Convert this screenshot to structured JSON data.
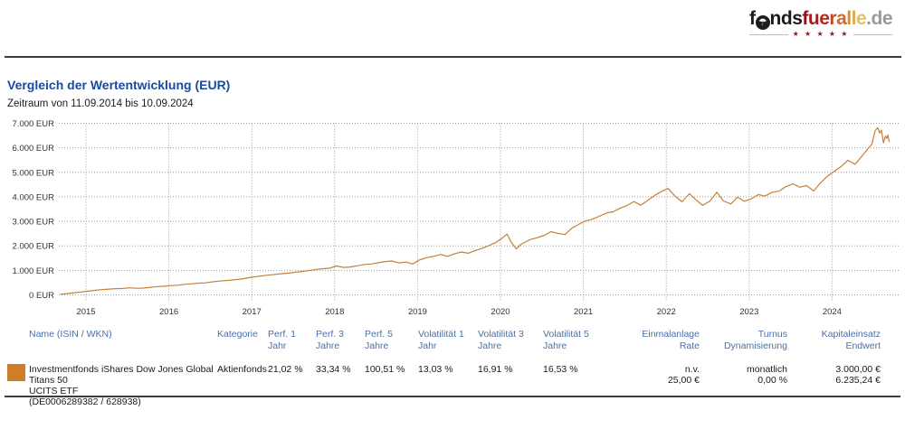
{
  "logo": {
    "f": "f",
    "o_glyph": "☂",
    "nds": "nds",
    "brand_letters": [
      {
        "ch": "f",
        "color": "#8e1216"
      },
      {
        "ch": "u",
        "color": "#a81a1c"
      },
      {
        "ch": "e",
        "color": "#bd2420"
      },
      {
        "ch": "r",
        "color": "#c94724"
      },
      {
        "ch": "a",
        "color": "#d06a28"
      },
      {
        "ch": "l",
        "color": "#d78d33"
      },
      {
        "ch": "l",
        "color": "#ddab4a"
      },
      {
        "ch": "e",
        "color": "#e2c168"
      }
    ],
    "de": ".de",
    "stars": "★ ★ ★ ★ ★"
  },
  "page": {
    "title": "Vergleich der Wertentwicklung (EUR)",
    "subtitle": "Zeitraum von 11.09.2014 bis 10.09.2024"
  },
  "chart_data": {
    "type": "line",
    "title": "Vergleich der Wertentwicklung (EUR)",
    "xlabel": "",
    "ylabel": "EUR",
    "grid": true,
    "x_axis": {
      "range": [
        2014.69,
        2024.69
      ],
      "ticks": [
        2015,
        2016,
        2017,
        2018,
        2019,
        2020,
        2021,
        2022,
        2023,
        2024
      ]
    },
    "y_axis": {
      "min": 0,
      "max": 7000,
      "step": 1000,
      "tick_labels": [
        "0 EUR",
        "1.000 EUR",
        "2.000 EUR",
        "3.000 EUR",
        "4.000 EUR",
        "5.000 EUR",
        "6.000 EUR",
        "7.000 EUR"
      ]
    },
    "series": [
      {
        "name": "Investmentfonds iShares Dow Jones Global Titans 50 UCITS ETF",
        "color": "#c3813a",
        "points": [
          [
            2014.69,
            25
          ],
          [
            2014.78,
            55
          ],
          [
            2014.86,
            90
          ],
          [
            2014.94,
            115
          ],
          [
            2015.02,
            150
          ],
          [
            2015.11,
            185
          ],
          [
            2015.19,
            215
          ],
          [
            2015.28,
            235
          ],
          [
            2015.36,
            255
          ],
          [
            2015.44,
            262
          ],
          [
            2015.53,
            288
          ],
          [
            2015.61,
            268
          ],
          [
            2015.69,
            278
          ],
          [
            2015.78,
            308
          ],
          [
            2015.86,
            338
          ],
          [
            2015.94,
            352
          ],
          [
            2016.02,
            380
          ],
          [
            2016.11,
            395
          ],
          [
            2016.19,
            430
          ],
          [
            2016.28,
            455
          ],
          [
            2016.36,
            480
          ],
          [
            2016.44,
            490
          ],
          [
            2016.53,
            535
          ],
          [
            2016.61,
            565
          ],
          [
            2016.69,
            585
          ],
          [
            2016.78,
            610
          ],
          [
            2016.86,
            640
          ],
          [
            2016.94,
            685
          ],
          [
            2017.02,
            730
          ],
          [
            2017.11,
            770
          ],
          [
            2017.19,
            805
          ],
          [
            2017.28,
            835
          ],
          [
            2017.36,
            865
          ],
          [
            2017.44,
            885
          ],
          [
            2017.53,
            930
          ],
          [
            2017.61,
            955
          ],
          [
            2017.69,
            995
          ],
          [
            2017.78,
            1040
          ],
          [
            2017.86,
            1070
          ],
          [
            2017.94,
            1090
          ],
          [
            2018.02,
            1180
          ],
          [
            2018.11,
            1120
          ],
          [
            2018.19,
            1140
          ],
          [
            2018.28,
            1190
          ],
          [
            2018.36,
            1240
          ],
          [
            2018.44,
            1260
          ],
          [
            2018.53,
            1310
          ],
          [
            2018.61,
            1360
          ],
          [
            2018.69,
            1380
          ],
          [
            2018.78,
            1300
          ],
          [
            2018.86,
            1340
          ],
          [
            2018.94,
            1260
          ],
          [
            2019.02,
            1420
          ],
          [
            2019.11,
            1520
          ],
          [
            2019.19,
            1570
          ],
          [
            2019.28,
            1650
          ],
          [
            2019.36,
            1570
          ],
          [
            2019.44,
            1670
          ],
          [
            2019.53,
            1750
          ],
          [
            2019.61,
            1700
          ],
          [
            2019.69,
            1800
          ],
          [
            2019.78,
            1900
          ],
          [
            2019.86,
            2010
          ],
          [
            2019.94,
            2130
          ],
          [
            2020.02,
            2310
          ],
          [
            2020.08,
            2480
          ],
          [
            2020.13,
            2150
          ],
          [
            2020.19,
            1870
          ],
          [
            2020.24,
            2050
          ],
          [
            2020.28,
            2120
          ],
          [
            2020.36,
            2260
          ],
          [
            2020.44,
            2330
          ],
          [
            2020.53,
            2430
          ],
          [
            2020.61,
            2580
          ],
          [
            2020.69,
            2510
          ],
          [
            2020.78,
            2460
          ],
          [
            2020.86,
            2720
          ],
          [
            2020.94,
            2870
          ],
          [
            2021.02,
            3010
          ],
          [
            2021.11,
            3090
          ],
          [
            2021.19,
            3200
          ],
          [
            2021.28,
            3340
          ],
          [
            2021.36,
            3390
          ],
          [
            2021.44,
            3530
          ],
          [
            2021.53,
            3650
          ],
          [
            2021.61,
            3810
          ],
          [
            2021.69,
            3660
          ],
          [
            2021.78,
            3860
          ],
          [
            2021.86,
            4060
          ],
          [
            2021.94,
            4210
          ],
          [
            2022.02,
            4340
          ],
          [
            2022.11,
            4020
          ],
          [
            2022.19,
            3800
          ],
          [
            2022.28,
            4130
          ],
          [
            2022.36,
            3870
          ],
          [
            2022.44,
            3650
          ],
          [
            2022.53,
            3830
          ],
          [
            2022.61,
            4190
          ],
          [
            2022.69,
            3830
          ],
          [
            2022.78,
            3710
          ],
          [
            2022.86,
            3990
          ],
          [
            2022.94,
            3820
          ],
          [
            2023.02,
            3910
          ],
          [
            2023.11,
            4090
          ],
          [
            2023.19,
            4030
          ],
          [
            2023.28,
            4190
          ],
          [
            2023.36,
            4230
          ],
          [
            2023.44,
            4410
          ],
          [
            2023.53,
            4530
          ],
          [
            2023.61,
            4390
          ],
          [
            2023.69,
            4460
          ],
          [
            2023.78,
            4240
          ],
          [
            2023.86,
            4570
          ],
          [
            2023.94,
            4830
          ],
          [
            2024.02,
            5020
          ],
          [
            2024.11,
            5240
          ],
          [
            2024.19,
            5490
          ],
          [
            2024.28,
            5330
          ],
          [
            2024.36,
            5660
          ],
          [
            2024.44,
            5990
          ],
          [
            2024.48,
            6150
          ],
          [
            2024.52,
            6700
          ],
          [
            2024.55,
            6820
          ],
          [
            2024.575,
            6600
          ],
          [
            2024.595,
            6720
          ],
          [
            2024.62,
            6200
          ],
          [
            2024.645,
            6480
          ],
          [
            2024.66,
            6380
          ],
          [
            2024.675,
            6520
          ],
          [
            2024.69,
            6235
          ]
        ]
      }
    ]
  },
  "table": {
    "headers": [
      {
        "l1": "Name (ISIN / WKN)",
        "l2": ""
      },
      {
        "l1": "Kategorie",
        "l2": ""
      },
      {
        "l1": "Perf. 1",
        "l2": "Jahr"
      },
      {
        "l1": "Perf. 3",
        "l2": "Jahre"
      },
      {
        "l1": "Perf. 5",
        "l2": "Jahre"
      },
      {
        "l1": "Volatilität 1",
        "l2": "Jahr"
      },
      {
        "l1": "Volatilität 3",
        "l2": "Jahre"
      },
      {
        "l1": "Volatilität 5",
        "l2": "Jahre"
      },
      {
        "l1": "Einmalanlage",
        "l2": "Rate"
      },
      {
        "l1": "Turnus",
        "l2": "Dynamisierung"
      },
      {
        "l1": "Kapitaleinsatz",
        "l2": "Endwert"
      }
    ],
    "rows": [
      {
        "color": "#ce7d28",
        "name_lines": [
          "Investmentfonds iShares Dow Jones Global Titans 50",
          "UCITS ETF",
          "(DE0006289382 / 628938)"
        ],
        "kategorie": "Aktienfonds",
        "perf1": "21,02 %",
        "perf3": "33,34 %",
        "perf5": "100,51 %",
        "vol1": "13,03 %",
        "vol3": "16,91 %",
        "vol5": "16,53 %",
        "einmalanlage": "n.v.",
        "rate": "25,00 €",
        "turnus": "monatlich",
        "dynamisierung": "0,00 %",
        "kapitaleinsatz": "3.000,00 €",
        "endwert": "6.235,24 €"
      }
    ]
  }
}
